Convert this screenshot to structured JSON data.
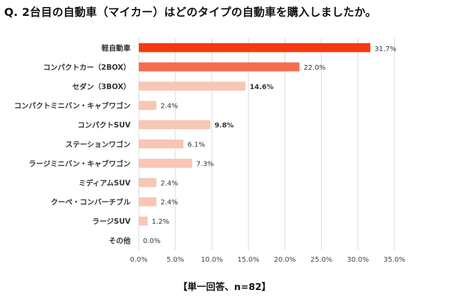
{
  "header": {
    "title": "Q. 2台目の自動車（マイカー）はどのタイプの自動車を購入しましたか。"
  },
  "footer": {
    "note": "【単一回答、n=82】"
  },
  "colors": {
    "top": "#f43a0e",
    "second": "#f46e4e",
    "rest": "#f8c6b4",
    "grid": "#d9d9d9",
    "top_label": "#e8380d"
  },
  "chart_data": {
    "type": "bar",
    "orientation": "horizontal",
    "categories": [
      "軽自動車",
      "コンパクトカー（2BOX）",
      "セダン（3BOX）",
      "コンパクトミニバン・キャブワゴン",
      "コンパクトSUV",
      "ステーションワゴン",
      "ラージミニバン・キャブワゴン",
      "ミディアムSUV",
      "クーペ・コンバーチブル",
      "ラージSUV",
      "その他"
    ],
    "values": [
      31.7,
      22.0,
      14.6,
      2.4,
      9.8,
      6.1,
      7.3,
      2.4,
      2.4,
      1.2,
      0.0
    ],
    "value_labels": [
      "31.7%",
      "22.0%",
      "14.6%",
      "2.4%",
      "9.8%",
      "6.1%",
      "7.3%",
      "2.4%",
      "2.4%",
      "1.2%",
      "0.0%"
    ],
    "xlim": [
      0,
      35
    ],
    "x_ticks": [
      "0.0%",
      "5.0%",
      "10.0%",
      "15.0%",
      "20.0%",
      "25.0%",
      "30.0%",
      "35.0%"
    ],
    "grid": true,
    "xlabel": "",
    "ylabel": ""
  }
}
